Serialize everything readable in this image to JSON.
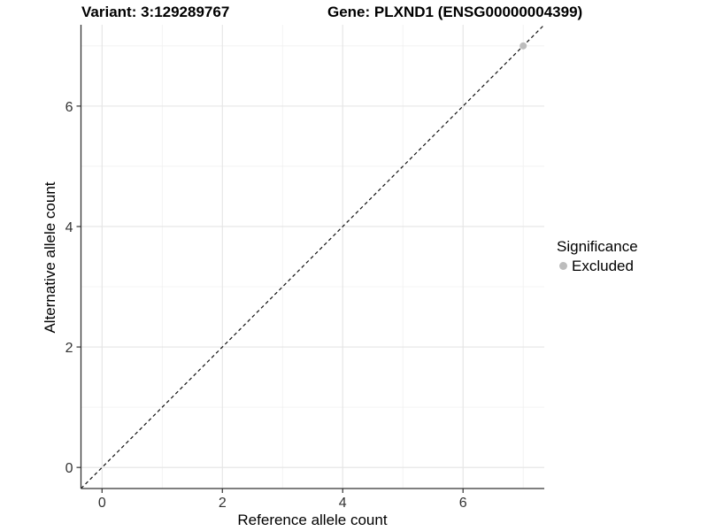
{
  "chart_data": {
    "type": "scatter",
    "title_left": "Variant: 3:129289767",
    "title_right": "Gene: PLXND1 (ENSG00000004399)",
    "xlabel": "Reference allele count",
    "ylabel": "Alternative allele count",
    "xlim": [
      -0.35,
      7.35
    ],
    "ylim": [
      -0.35,
      7.35
    ],
    "x_major_ticks": [
      0,
      2,
      4,
      6
    ],
    "y_major_ticks": [
      0,
      2,
      4,
      6
    ],
    "x_minor_gridlines": [
      1,
      3,
      5,
      7
    ],
    "y_minor_gridlines": [
      1,
      3,
      5,
      7
    ],
    "grid": true,
    "legend": {
      "title": "Significance",
      "position": "right",
      "items": [
        {
          "label": "Excluded",
          "color": "#bdbdbd"
        }
      ]
    },
    "series": [
      {
        "name": "Excluded",
        "color": "#bdbdbd",
        "points": [
          [
            7,
            7
          ]
        ]
      }
    ],
    "reference_line": {
      "slope": 1,
      "intercept": 0,
      "linetype": "dashed",
      "color": "#111111"
    },
    "colors": {
      "major_grid": "#e4e4e4",
      "minor_grid": "#f0f0f0",
      "axis_line": "#333333",
      "tick_label": "#333333"
    }
  }
}
